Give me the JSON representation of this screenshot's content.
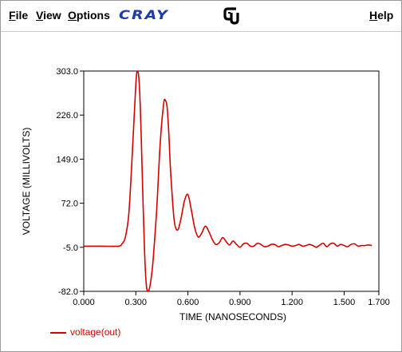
{
  "menubar": {
    "file": "File",
    "view": "View",
    "options": "Options",
    "help": "Help",
    "brand_logo": "CRAY",
    "cu_logo_icon": "cu-monogram-icon"
  },
  "colors": {
    "trace": "#d40000",
    "brand": "#1c3da8",
    "axis": "#000000"
  },
  "chart_data": {
    "type": "line",
    "xlabel": "TIME (NANOSECONDS)",
    "ylabel": "VOLTAGE (MILLIVOLTS)",
    "xlim": [
      0,
      1.7
    ],
    "ylim": [
      -82,
      303
    ],
    "xticks": [
      "0.000",
      "0.300",
      "0.600",
      "0.900",
      "1.200",
      "1.500",
      "1.700"
    ],
    "xtick_values": [
      0,
      0.3,
      0.6,
      0.9,
      1.2,
      1.5,
      1.7
    ],
    "yticks": [
      "303.0",
      "226.0",
      "149.0",
      "72.0",
      "-5.0",
      "-82.0"
    ],
    "ytick_values": [
      303,
      226,
      149,
      72,
      -5,
      -82
    ],
    "grid": false,
    "legend_position": "bottom-left",
    "series": [
      {
        "name": "voltage(out)",
        "color": "#d40000",
        "x": [
          0.0,
          0.1,
          0.2,
          0.22,
          0.24,
          0.26,
          0.28,
          0.3,
          0.31,
          0.32,
          0.33,
          0.34,
          0.35,
          0.36,
          0.37,
          0.38,
          0.39,
          0.4,
          0.42,
          0.44,
          0.46,
          0.47,
          0.48,
          0.49,
          0.5,
          0.52,
          0.54,
          0.56,
          0.58,
          0.6,
          0.62,
          0.64,
          0.66,
          0.68,
          0.7,
          0.72,
          0.74,
          0.76,
          0.78,
          0.8,
          0.82,
          0.84,
          0.86,
          0.88,
          0.9,
          0.92,
          0.94,
          0.96,
          0.98,
          1.0,
          1.02,
          1.04,
          1.06,
          1.08,
          1.1,
          1.12,
          1.14,
          1.16,
          1.18,
          1.2,
          1.22,
          1.24,
          1.26,
          1.28,
          1.3,
          1.32,
          1.34,
          1.36,
          1.38,
          1.4,
          1.42,
          1.44,
          1.46,
          1.48,
          1.5,
          1.52,
          1.54,
          1.56,
          1.58,
          1.6,
          1.62,
          1.64,
          1.66
        ],
        "y": [
          -3,
          -3,
          -3,
          1,
          13,
          55,
          160,
          280,
          303,
          280,
          200,
          90,
          -10,
          -70,
          -82,
          -75,
          -55,
          -25,
          60,
          175,
          245,
          252,
          240,
          195,
          130,
          45,
          25,
          45,
          76,
          87,
          60,
          28,
          13,
          20,
          32,
          23,
          9,
          0,
          3,
          12,
          5,
          -1,
          6,
          0,
          -5,
          1,
          2,
          -3,
          -3,
          2,
          0,
          -4,
          -3,
          0,
          0,
          -4,
          -2,
          0,
          -1,
          -3,
          -2,
          0,
          -3,
          -2,
          0,
          -2,
          -5,
          -1,
          2,
          -4,
          1,
          2,
          -3,
          0,
          -2,
          -4,
          0,
          1,
          -3,
          -2,
          -2,
          -1,
          -2
        ]
      }
    ]
  }
}
